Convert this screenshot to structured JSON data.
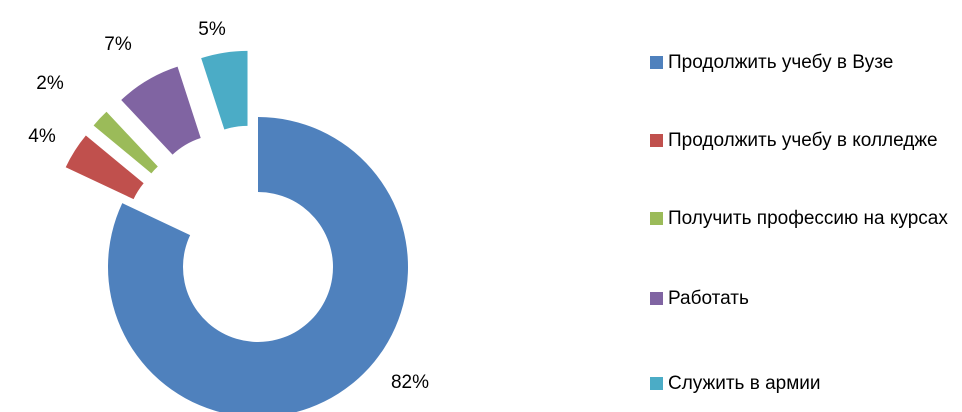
{
  "chart_data": {
    "type": "donut",
    "categories": [
      "Продолжить учебу в Вузе",
      "Продолжить учебу в колледже",
      "Получить профессию на курсах",
      "Работать",
      "Служить в армии"
    ],
    "values": [
      82,
      4,
      2,
      7,
      5
    ],
    "value_labels": [
      "82%",
      "4%",
      "2%",
      "7%",
      "5%"
    ],
    "colors": [
      "#4f81bd",
      "#c0504d",
      "#9bbb59",
      "#8064a2",
      "#4bacc6"
    ],
    "legend": "right"
  }
}
